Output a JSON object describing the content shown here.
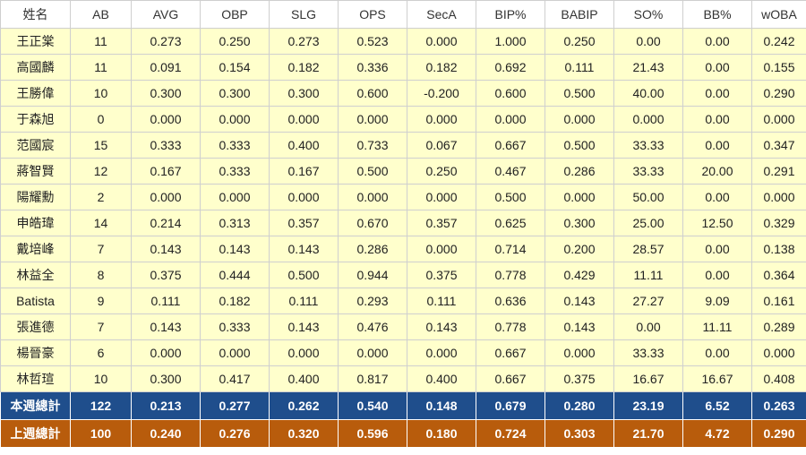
{
  "headers": [
    "姓名",
    "AB",
    "AVG",
    "OBP",
    "SLG",
    "OPS",
    "SecA",
    "BIP%",
    "BABIP",
    "SO%",
    "BB%",
    "wOBA"
  ],
  "rows": [
    [
      "王正棠",
      "11",
      "0.273",
      "0.250",
      "0.273",
      "0.523",
      "0.000",
      "1.000",
      "0.250",
      "0.00",
      "0.00",
      "0.242"
    ],
    [
      "高國麟",
      "11",
      "0.091",
      "0.154",
      "0.182",
      "0.336",
      "0.182",
      "0.692",
      "0.111",
      "21.43",
      "0.00",
      "0.155"
    ],
    [
      "王勝偉",
      "10",
      "0.300",
      "0.300",
      "0.300",
      "0.600",
      "-0.200",
      "0.600",
      "0.500",
      "40.00",
      "0.00",
      "0.290"
    ],
    [
      "于森旭",
      "0",
      "0.000",
      "0.000",
      "0.000",
      "0.000",
      "0.000",
      "0.000",
      "0.000",
      "0.000",
      "0.00",
      "0.000"
    ],
    [
      "范國宸",
      "15",
      "0.333",
      "0.333",
      "0.400",
      "0.733",
      "0.067",
      "0.667",
      "0.500",
      "33.33",
      "0.00",
      "0.347"
    ],
    [
      "蔣智賢",
      "12",
      "0.167",
      "0.333",
      "0.167",
      "0.500",
      "0.250",
      "0.467",
      "0.286",
      "33.33",
      "20.00",
      "0.291"
    ],
    [
      "陽耀勳",
      "2",
      "0.000",
      "0.000",
      "0.000",
      "0.000",
      "0.000",
      "0.500",
      "0.000",
      "50.00",
      "0.00",
      "0.000"
    ],
    [
      "申皓瑋",
      "14",
      "0.214",
      "0.313",
      "0.357",
      "0.670",
      "0.357",
      "0.625",
      "0.300",
      "25.00",
      "12.50",
      "0.329"
    ],
    [
      "戴培峰",
      "7",
      "0.143",
      "0.143",
      "0.143",
      "0.286",
      "0.000",
      "0.714",
      "0.200",
      "28.57",
      "0.00",
      "0.138"
    ],
    [
      "林益全",
      "8",
      "0.375",
      "0.444",
      "0.500",
      "0.944",
      "0.375",
      "0.778",
      "0.429",
      "11.11",
      "0.00",
      "0.364"
    ],
    [
      "Batista",
      "9",
      "0.111",
      "0.182",
      "0.111",
      "0.293",
      "0.111",
      "0.636",
      "0.143",
      "27.27",
      "9.09",
      "0.161"
    ],
    [
      "張進德",
      "7",
      "0.143",
      "0.333",
      "0.143",
      "0.476",
      "0.143",
      "0.778",
      "0.143",
      "0.00",
      "11.11",
      "0.289"
    ],
    [
      "楊晉豪",
      "6",
      "0.000",
      "0.000",
      "0.000",
      "0.000",
      "0.000",
      "0.667",
      "0.000",
      "33.33",
      "0.00",
      "0.000"
    ],
    [
      "林哲瑄",
      "10",
      "0.300",
      "0.417",
      "0.400",
      "0.817",
      "0.400",
      "0.667",
      "0.375",
      "16.67",
      "16.67",
      "0.408"
    ]
  ],
  "totals": [
    [
      "本週總計",
      "122",
      "0.213",
      "0.277",
      "0.262",
      "0.540",
      "0.148",
      "0.679",
      "0.280",
      "23.19",
      "6.52",
      "0.263"
    ],
    [
      "上週總計",
      "100",
      "0.240",
      "0.276",
      "0.320",
      "0.596",
      "0.180",
      "0.724",
      "0.303",
      "21.70",
      "4.72",
      "0.290"
    ]
  ],
  "colors": {
    "row_background": "#ffffcc",
    "this_week_total": "#1f4e8c",
    "last_week_total": "#b85c0c"
  }
}
